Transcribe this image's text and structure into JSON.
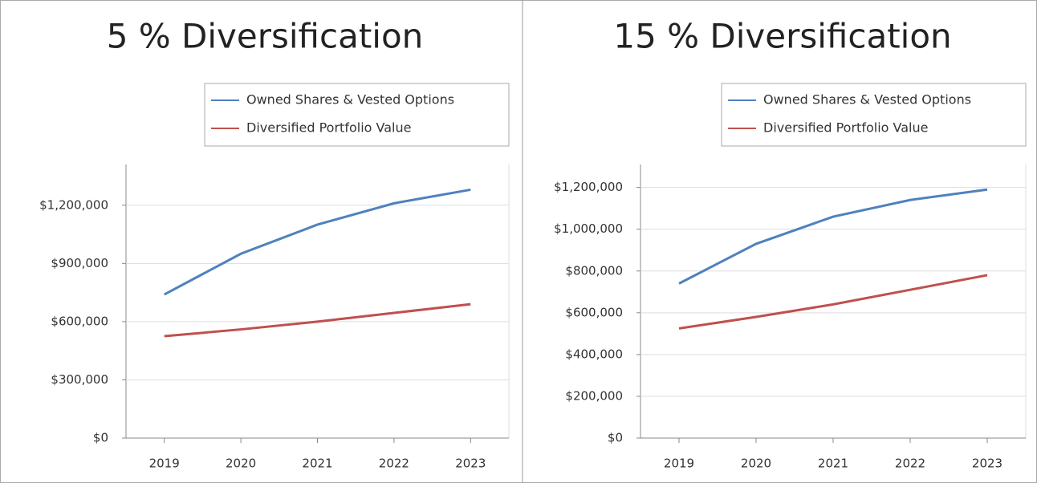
{
  "chart_data": [
    {
      "type": "line",
      "title": "5 % Diversification",
      "categories": [
        "2019",
        "2020",
        "2021",
        "2022",
        "2023"
      ],
      "series": [
        {
          "name": "Owned Shares & Vested Options",
          "color": "#4f81bd",
          "values": [
            740000,
            950000,
            1100000,
            1210000,
            1280000
          ]
        },
        {
          "name": "Diversified Portfolio Value",
          "color": "#c0504d",
          "values": [
            525000,
            560000,
            600000,
            645000,
            690000
          ]
        }
      ],
      "ylim": [
        0,
        1410000
      ],
      "yticks": [
        {
          "value": 0,
          "label": "$0"
        },
        {
          "value": 300000,
          "label": "$300,000"
        },
        {
          "value": 600000,
          "label": "$600,000"
        },
        {
          "value": 900000,
          "label": "$900,000"
        },
        {
          "value": 1200000,
          "label": "$1,200,000"
        }
      ],
      "grid": true,
      "legend": "top-right"
    },
    {
      "type": "line",
      "title": "15 % Diversification",
      "categories": [
        "2019",
        "2020",
        "2021",
        "2022",
        "2023"
      ],
      "series": [
        {
          "name": "Owned Shares & Vested Options",
          "color": "#4f81bd",
          "values": [
            740000,
            930000,
            1060000,
            1140000,
            1190000
          ]
        },
        {
          "name": "Diversified Portfolio Value",
          "color": "#c0504d",
          "values": [
            525000,
            580000,
            640000,
            710000,
            780000
          ]
        }
      ],
      "ylim": [
        0,
        1310000
      ],
      "yticks": [
        {
          "value": 0,
          "label": "$0"
        },
        {
          "value": 200000,
          "label": "$200,000"
        },
        {
          "value": 400000,
          "label": "$400,000"
        },
        {
          "value": 600000,
          "label": "$600,000"
        },
        {
          "value": 800000,
          "label": "$800,000"
        },
        {
          "value": 1000000,
          "label": "$1,000,000"
        },
        {
          "value": 1200000,
          "label": "$1,200,000"
        }
      ],
      "grid": true,
      "legend": "top-right"
    }
  ]
}
